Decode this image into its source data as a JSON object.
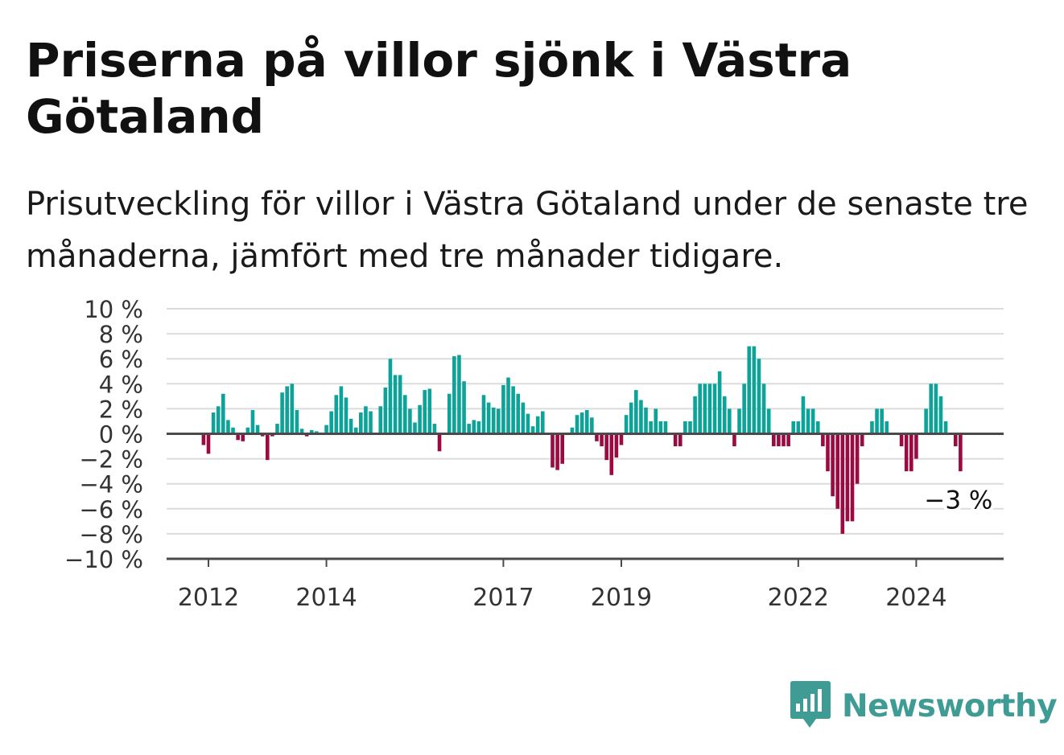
{
  "title": "Priserna på villor sjönk i Västra Götaland",
  "subtitle": "Prisutveckling för villor i Västra Götaland under de senaste tre månaderna, jämfört med tre månader tidigare.",
  "brand": {
    "name": "Newsworthy",
    "logo_icon": "bar-chart-speech-bubble-icon",
    "color": "#3f9c95"
  },
  "colors": {
    "positive": "#0ea399",
    "negative": "#9b0b42",
    "grid": "#dcdcdc",
    "zero_line": "#4a4a4a"
  },
  "chart_data": {
    "type": "bar",
    "title": "Priserna på villor sjönk i Västra Götaland",
    "subtitle": "Prisutveckling för villor i Västra Götaland under de senaste tre månaderna, jämfört med tre månader tidigare.",
    "xlabel": "",
    "ylabel": "",
    "ylim": [
      -10,
      10
    ],
    "yticks": [
      10,
      8,
      6,
      4,
      2,
      0,
      -2,
      -4,
      -6,
      -8,
      -10
    ],
    "ytick_labels": [
      "10 %",
      "8 %",
      "6 %",
      "4 %",
      "2 %",
      "0 %",
      "−2 %",
      "−4 %",
      "−6 %",
      "−8 %",
      "−10 %"
    ],
    "xticks": [
      {
        "label": "2012",
        "date": "2012-01"
      },
      {
        "label": "2014",
        "date": "2014-01"
      },
      {
        "label": "2017",
        "date": "2017-01"
      },
      {
        "label": "2019",
        "date": "2019-01"
      },
      {
        "label": "2022",
        "date": "2022-01"
      },
      {
        "label": "2024",
        "date": "2024-01"
      }
    ],
    "grid": true,
    "last_value_label": "−3 %",
    "series": [
      {
        "values": [
          [
            "2011-12",
            -0.9
          ],
          [
            "2012-01",
            -1.6
          ],
          [
            "2012-02",
            1.7
          ],
          [
            "2012-03",
            2.2
          ],
          [
            "2012-04",
            3.2
          ],
          [
            "2012-05",
            1.1
          ],
          [
            "2012-06",
            0.5
          ],
          [
            "2012-07",
            -0.5
          ],
          [
            "2012-08",
            -0.6
          ],
          [
            "2012-09",
            0.5
          ],
          [
            "2012-10",
            1.9
          ],
          [
            "2012-11",
            0.7
          ],
          [
            "2012-12",
            -0.2
          ],
          [
            "2013-01",
            -2.1
          ],
          [
            "2013-02",
            -0.2
          ],
          [
            "2013-03",
            0.8
          ],
          [
            "2013-04",
            3.3
          ],
          [
            "2013-05",
            3.8
          ],
          [
            "2013-06",
            4.0
          ],
          [
            "2013-07",
            1.9
          ],
          [
            "2013-08",
            0.4
          ],
          [
            "2013-09",
            -0.2
          ],
          [
            "2013-10",
            0.3
          ],
          [
            "2013-11",
            0.2
          ],
          [
            "2013-12",
            0.1
          ],
          [
            "2014-01",
            0.7
          ],
          [
            "2014-02",
            1.8
          ],
          [
            "2014-03",
            3.1
          ],
          [
            "2014-04",
            3.8
          ],
          [
            "2014-05",
            2.9
          ],
          [
            "2014-06",
            1.2
          ],
          [
            "2014-07",
            0.5
          ],
          [
            "2014-08",
            1.7
          ],
          [
            "2014-09",
            2.2
          ],
          [
            "2014-10",
            1.8
          ],
          [
            "2014-11",
            0.0
          ],
          [
            "2014-12",
            2.2
          ],
          [
            "2015-01",
            3.7
          ],
          [
            "2015-02",
            6.0
          ],
          [
            "2015-03",
            4.7
          ],
          [
            "2015-04",
            4.7
          ],
          [
            "2015-05",
            3.1
          ],
          [
            "2015-06",
            2.0
          ],
          [
            "2015-07",
            0.9
          ],
          [
            "2015-08",
            2.3
          ],
          [
            "2015-09",
            3.5
          ],
          [
            "2015-10",
            3.6
          ],
          [
            "2015-11",
            0.8
          ],
          [
            "2015-12",
            -1.4
          ],
          [
            "2016-01",
            0.0
          ],
          [
            "2016-02",
            3.2
          ],
          [
            "2016-03",
            6.2
          ],
          [
            "2016-04",
            6.3
          ],
          [
            "2016-05",
            4.2
          ],
          [
            "2016-06",
            0.8
          ],
          [
            "2016-07",
            1.1
          ],
          [
            "2016-08",
            1.0
          ],
          [
            "2016-09",
            3.1
          ],
          [
            "2016-10",
            2.5
          ],
          [
            "2016-11",
            2.1
          ],
          [
            "2016-12",
            2.0
          ],
          [
            "2017-01",
            3.9
          ],
          [
            "2017-02",
            4.5
          ],
          [
            "2017-03",
            3.8
          ],
          [
            "2017-04",
            3.2
          ],
          [
            "2017-05",
            2.5
          ],
          [
            "2017-06",
            1.6
          ],
          [
            "2017-07",
            0.6
          ],
          [
            "2017-08",
            1.4
          ],
          [
            "2017-09",
            1.8
          ],
          [
            "2017-10",
            0.0
          ],
          [
            "2017-11",
            -2.7
          ],
          [
            "2017-12",
            -2.9
          ],
          [
            "2018-01",
            -2.4
          ],
          [
            "2018-02",
            -0.1
          ],
          [
            "2018-03",
            0.5
          ],
          [
            "2018-04",
            1.5
          ],
          [
            "2018-05",
            1.7
          ],
          [
            "2018-06",
            1.9
          ],
          [
            "2018-07",
            1.3
          ],
          [
            "2018-08",
            -0.6
          ],
          [
            "2018-09",
            -1.0
          ],
          [
            "2018-10",
            -2.1
          ],
          [
            "2018-11",
            -3.3
          ],
          [
            "2018-12",
            -1.9
          ],
          [
            "2019-01",
            -0.9
          ],
          [
            "2019-02",
            1.5
          ],
          [
            "2019-03",
            2.5
          ],
          [
            "2019-04",
            3.5
          ],
          [
            "2019-05",
            2.7
          ],
          [
            "2019-06",
            2.1
          ],
          [
            "2019-07",
            1.0
          ],
          [
            "2019-08",
            2.0
          ],
          [
            "2019-09",
            1.0
          ],
          [
            "2019-10",
            1.0
          ],
          [
            "2019-11",
            0.0
          ],
          [
            "2019-12",
            -1.0
          ],
          [
            "2020-01",
            -1.0
          ],
          [
            "2020-02",
            1.0
          ],
          [
            "2020-03",
            1.0
          ],
          [
            "2020-04",
            3.0
          ],
          [
            "2020-05",
            4.0
          ],
          [
            "2020-06",
            4.0
          ],
          [
            "2020-07",
            4.0
          ],
          [
            "2020-08",
            4.0
          ],
          [
            "2020-09",
            5.0
          ],
          [
            "2020-10",
            3.0
          ],
          [
            "2020-11",
            2.0
          ],
          [
            "2020-12",
            -1.0
          ],
          [
            "2021-01",
            2.0
          ],
          [
            "2021-02",
            4.0
          ],
          [
            "2021-03",
            7.0
          ],
          [
            "2021-04",
            7.0
          ],
          [
            "2021-05",
            6.0
          ],
          [
            "2021-06",
            4.0
          ],
          [
            "2021-07",
            2.0
          ],
          [
            "2021-08",
            -1.0
          ],
          [
            "2021-09",
            -1.0
          ],
          [
            "2021-10",
            -1.0
          ],
          [
            "2021-11",
            -1.0
          ],
          [
            "2021-12",
            1.0
          ],
          [
            "2022-01",
            1.0
          ],
          [
            "2022-02",
            3.0
          ],
          [
            "2022-03",
            2.0
          ],
          [
            "2022-04",
            2.0
          ],
          [
            "2022-05",
            1.0
          ],
          [
            "2022-06",
            -1.0
          ],
          [
            "2022-07",
            -3.0
          ],
          [
            "2022-08",
            -5.0
          ],
          [
            "2022-09",
            -6.0
          ],
          [
            "2022-10",
            -8.0
          ],
          [
            "2022-11",
            -7.0
          ],
          [
            "2022-12",
            -7.0
          ],
          [
            "2023-01",
            -4.0
          ],
          [
            "2023-02",
            -1.0
          ],
          [
            "2023-03",
            0.0
          ],
          [
            "2023-04",
            1.0
          ],
          [
            "2023-05",
            2.0
          ],
          [
            "2023-06",
            2.0
          ],
          [
            "2023-07",
            1.0
          ],
          [
            "2023-08",
            0.0
          ],
          [
            "2023-09",
            0.0
          ],
          [
            "2023-10",
            -1.0
          ],
          [
            "2023-11",
            -3.0
          ],
          [
            "2023-12",
            -3.0
          ],
          [
            "2024-01",
            -2.0
          ],
          [
            "2024-02",
            0.0
          ],
          [
            "2024-03",
            2.0
          ],
          [
            "2024-04",
            4.0
          ],
          [
            "2024-05",
            4.0
          ],
          [
            "2024-06",
            3.0
          ],
          [
            "2024-07",
            1.0
          ],
          [
            "2024-08",
            0.0
          ],
          [
            "2024-09",
            -1.0
          ],
          [
            "2024-10",
            -3.0
          ]
        ]
      }
    ]
  }
}
